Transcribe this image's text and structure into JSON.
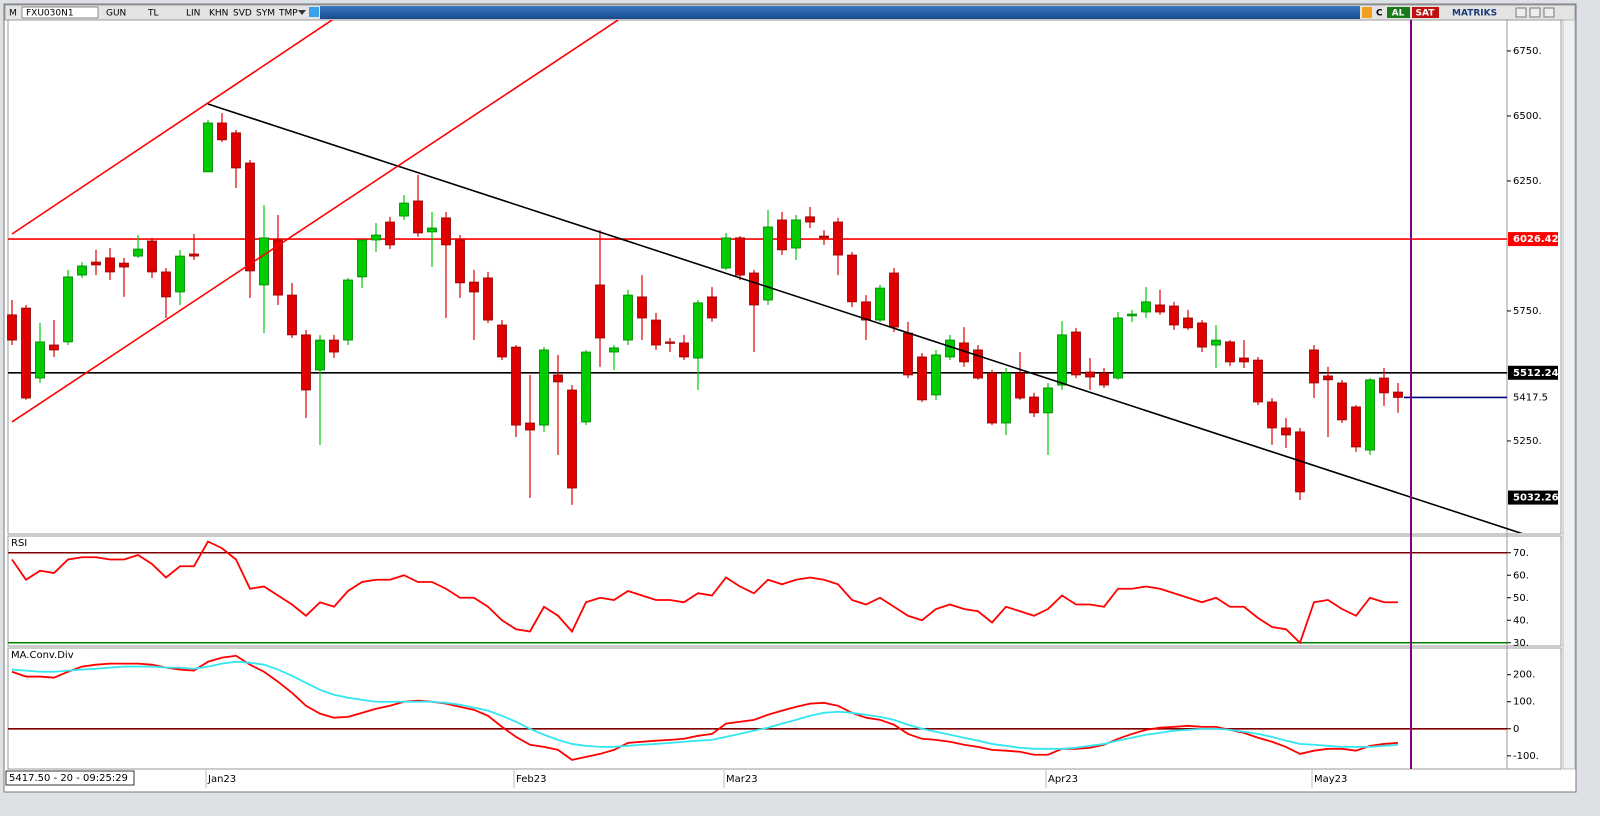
{
  "toolbar": {
    "menu": "M",
    "symbol": "FXU030N1",
    "buttons": [
      "GUN",
      "TL",
      "LIN",
      "KHN",
      "SVD",
      "SYM",
      "TMP"
    ],
    "refresh": "C",
    "buy": "AL",
    "sell": "SAT",
    "brand": "MATRIKS"
  },
  "status": "5417.50 - 20 - 09:25:29",
  "chart_data": [
    {
      "type": "candlestick",
      "categories": [
        null,
        null,
        null,
        null,
        null,
        null,
        null,
        null,
        null,
        null,
        null,
        null,
        null,
        null,
        "Jan23",
        null,
        null,
        null,
        null,
        null,
        null,
        null,
        null,
        null,
        null,
        null,
        null,
        null,
        null,
        null,
        null,
        null,
        null,
        null,
        null,
        null,
        "Feb23",
        null,
        null,
        null,
        null,
        null,
        null,
        null,
        null,
        null,
        null,
        null,
        null,
        null,
        null,
        "Mar23",
        null,
        null,
        null,
        null,
        null,
        null,
        null,
        null,
        null,
        null,
        null,
        null,
        null,
        null,
        null,
        null,
        null,
        null,
        null,
        null,
        null,
        null,
        "Apr23",
        null,
        null,
        null,
        null,
        null,
        null,
        null,
        null,
        null,
        null,
        null,
        null,
        null,
        null,
        null,
        null,
        null,
        null,
        "May23",
        null,
        null,
        null,
        null,
        null,
        null
      ],
      "open": [
        5735,
        5761,
        5492,
        5619,
        5631,
        5888,
        5938,
        5954,
        5934,
        5961,
        6019,
        5900,
        5823,
        5969,
        6285,
        6473,
        6435,
        6319,
        5850,
        6023,
        5811,
        5658,
        5523,
        5638,
        5638,
        5881,
        6023,
        6092,
        6115,
        6173,
        6054,
        6108,
        6023,
        5861,
        5877,
        5696,
        5611,
        5319,
        5311,
        5504,
        5446,
        5323,
        5850,
        5592,
        5638,
        5804,
        5715,
        5631,
        5627,
        5569,
        5804,
        5915,
        6031,
        5896,
        5792,
        6100,
        5992,
        6112,
        6038,
        6092,
        5965,
        5785,
        5715,
        5896,
        5665,
        5573,
        5427,
        5573,
        5627,
        5600,
        5511,
        5319,
        5511,
        5419,
        5358,
        5465,
        5669,
        5515,
        5511,
        5492,
        5731,
        5746,
        5773,
        5769,
        5723,
        5704,
        5619,
        5631,
        5569,
        5561,
        5400,
        5300,
        5285,
        5600,
        5500,
        5473,
        5381,
        5215,
        5492,
        5438
      ],
      "high": [
        5792,
        5773,
        5704,
        5715,
        5908,
        5938,
        5985,
        5992,
        5954,
        6042,
        6031,
        5915,
        5985,
        6046,
        6485,
        6511,
        6446,
        6331,
        6158,
        6119,
        5858,
        5677,
        5658,
        5658,
        5877,
        6023,
        6088,
        6112,
        6196,
        6273,
        6131,
        6131,
        6042,
        5908,
        5900,
        5715,
        5619,
        5504,
        5611,
        5581,
        5465,
        5600,
        6061,
        5619,
        5831,
        5888,
        5742,
        5646,
        5658,
        5792,
        5842,
        6050,
        6038,
        5908,
        6138,
        6131,
        6119,
        6150,
        6061,
        6108,
        5977,
        5811,
        5850,
        5915,
        5708,
        5588,
        5600,
        5658,
        5688,
        5619,
        5523,
        5531,
        5592,
        5435,
        5473,
        5711,
        5685,
        5569,
        5531,
        5746,
        5754,
        5842,
        5831,
        5785,
        5754,
        5715,
        5696,
        5638,
        5638,
        5573,
        5415,
        5338,
        5300,
        5619,
        5535,
        5485,
        5388,
        5492,
        5531,
        5473
      ],
      "low": [
        5619,
        5408,
        5473,
        5573,
        5619,
        5877,
        5888,
        5869,
        5804,
        5954,
        5877,
        5723,
        5773,
        5946,
        6285,
        6400,
        6223,
        5800,
        5665,
        5773,
        5646,
        5338,
        5235,
        5569,
        5619,
        5838,
        5977,
        5988,
        6100,
        6035,
        5919,
        5723,
        5800,
        5638,
        5704,
        5561,
        5265,
        5031,
        5285,
        5196,
        5004,
        5311,
        5535,
        5523,
        5619,
        5638,
        5600,
        5592,
        5561,
        5446,
        5708,
        5908,
        5869,
        5592,
        5773,
        5965,
        5946,
        6069,
        6004,
        5888,
        5765,
        5638,
        5708,
        5669,
        5492,
        5400,
        5408,
        5561,
        5535,
        5485,
        5311,
        5273,
        5408,
        5342,
        5196,
        5446,
        5492,
        5446,
        5454,
        5485,
        5708,
        5723,
        5735,
        5677,
        5677,
        5592,
        5531,
        5538,
        5531,
        5388,
        5235,
        5223,
        5023,
        5415,
        5265,
        5319,
        5208,
        5196,
        5385,
        5358
      ],
      "close": [
        5638,
        5415,
        5631,
        5600,
        5881,
        5923,
        5927,
        5900,
        5919,
        5988,
        5900,
        5804,
        5961,
        5961,
        6473,
        6408,
        6300,
        5904,
        6031,
        5811,
        5658,
        5446,
        5638,
        5592,
        5869,
        6023,
        6042,
        6004,
        6165,
        6050,
        6069,
        6004,
        5858,
        5823,
        5715,
        5573,
        5311,
        5292,
        5600,
        5477,
        5069,
        5592,
        5646,
        5608,
        5811,
        5723,
        5619,
        5627,
        5573,
        5781,
        5723,
        6031,
        5888,
        5773,
        6073,
        5985,
        6100,
        6092,
        6031,
        5965,
        5785,
        5715,
        5838,
        5688,
        5504,
        5408,
        5581,
        5638,
        5554,
        5492,
        5319,
        5511,
        5415,
        5358,
        5454,
        5658,
        5504,
        5496,
        5465,
        5723,
        5738,
        5785,
        5746,
        5696,
        5685,
        5611,
        5638,
        5554,
        5554,
        5400,
        5300,
        5273,
        5054,
        5473,
        5485,
        5331,
        5227,
        5485,
        5435,
        5417.5
      ],
      "up_color": "#00cc00",
      "down_color": "#e00000",
      "ylim": [
        4896,
        6869
      ],
      "yticks": [
        {
          "value": 5250,
          "label": "5250."
        },
        {
          "value": 5750,
          "label": "5750."
        },
        {
          "value": 6250,
          "label": "6250."
        },
        {
          "value": 6500,
          "label": "6500."
        },
        {
          "value": 6750,
          "label": "6750."
        }
      ],
      "levels": [
        {
          "value": 6026.42,
          "color": "#ff0000"
        },
        {
          "value": 5512.24,
          "color": "#000000"
        }
      ],
      "trendlines": [
        {
          "x": [
            14,
            100
          ],
          "y": [
            6546,
            5032.26
          ],
          "color": "#000000"
        },
        {
          "x": [
            0,
            14
          ],
          "y": [
            6046,
            6550
          ],
          "color": "#ff0000"
        },
        {
          "x": [
            0,
            28
          ],
          "y": [
            5323,
            6323
          ],
          "color": "#ff0000"
        }
      ],
      "last_color": "#000080"
    },
    {
      "type": "line",
      "title": "RSI",
      "series": [
        {
          "color": "#ff0000",
          "values": [
            67,
            58,
            62,
            61,
            67,
            68,
            68,
            67,
            67,
            69,
            65,
            59,
            64,
            64,
            75,
            72,
            67,
            54,
            55,
            51,
            47,
            42,
            48,
            46,
            53,
            57,
            58,
            58,
            60,
            57,
            57,
            54,
            50,
            50,
            46,
            40,
            36,
            35,
            46,
            42,
            35,
            48,
            50,
            49,
            53,
            51,
            49,
            49,
            48,
            52,
            51,
            59,
            55,
            52,
            58,
            56,
            58,
            59,
            58,
            56,
            49,
            47,
            50,
            46,
            42,
            40,
            45,
            47,
            45,
            44,
            39,
            46,
            44,
            42,
            45,
            51,
            47,
            47,
            46,
            54,
            54,
            55,
            54,
            52,
            50,
            48,
            50,
            46,
            46,
            41,
            37,
            36,
            30,
            48,
            49,
            45,
            42,
            50,
            48,
            48
          ]
        }
      ],
      "ylim": [
        29,
        77
      ],
      "yticks": [
        {
          "value": 30,
          "label": "30."
        },
        {
          "value": 40,
          "label": "40."
        },
        {
          "value": 50,
          "label": "50."
        },
        {
          "value": 60,
          "label": "60."
        },
        {
          "value": 70,
          "label": "70."
        }
      ],
      "levels": [
        {
          "value": 70,
          "color": "#800000"
        },
        {
          "value": 30,
          "color": "#008000"
        }
      ]
    },
    {
      "type": "line",
      "title": "MA.Conv.Div",
      "series": [
        {
          "color": "#ff0000",
          "values": [
            211,
            193,
            193,
            189,
            211,
            230,
            237,
            241,
            241,
            241,
            237,
            226,
            219,
            215,
            248,
            263,
            270,
            237,
            211,
            174,
            133,
            85,
            56,
            41,
            44,
            59,
            74,
            85,
            100,
            104,
            100,
            93,
            81,
            70,
            48,
            7,
            -30,
            -59,
            -67,
            -78,
            -115,
            -104,
            -93,
            -78,
            -52,
            -48,
            -44,
            -41,
            -37,
            -26,
            -19,
            19,
            26,
            33,
            52,
            67,
            81,
            93,
            96,
            85,
            59,
            41,
            33,
            15,
            -19,
            -37,
            -41,
            -48,
            -59,
            -67,
            -78,
            -81,
            -85,
            -96,
            -96,
            -74,
            -74,
            -70,
            -59,
            -37,
            -19,
            -4,
            4,
            7,
            11,
            7,
            7,
            -4,
            -15,
            -33,
            -48,
            -67,
            -93,
            -81,
            -74,
            -74,
            -81,
            -63,
            -56,
            -52
          ]
        },
        {
          "color": "#33e6f0",
          "values": [
            219,
            215,
            211,
            211,
            215,
            219,
            222,
            226,
            230,
            230,
            230,
            226,
            226,
            222,
            230,
            241,
            248,
            244,
            237,
            219,
            196,
            170,
            144,
            126,
            115,
            107,
            100,
            100,
            100,
            100,
            100,
            96,
            89,
            78,
            67,
            48,
            26,
            0,
            -22,
            -41,
            -56,
            -63,
            -67,
            -67,
            -63,
            -59,
            -56,
            -52,
            -48,
            -44,
            -41,
            -30,
            -19,
            -7,
            4,
            19,
            33,
            48,
            59,
            63,
            59,
            52,
            44,
            33,
            15,
            0,
            -11,
            -22,
            -33,
            -44,
            -56,
            -63,
            -70,
            -74,
            -74,
            -74,
            -70,
            -63,
            -56,
            -44,
            -33,
            -22,
            -15,
            -7,
            -4,
            0,
            0,
            -4,
            -11,
            -19,
            -30,
            -44,
            -56,
            -59,
            -63,
            -67,
            -67,
            -67,
            -63,
            -59
          ]
        }
      ],
      "ylim": [
        -145,
        295
      ],
      "yticks": [
        {
          "value": -100,
          "label": "-100."
        },
        0,
        {
          "value": 100,
          "label": "100."
        },
        {
          "value": 200,
          "label": "200."
        }
      ],
      "levels": [
        {
          "value": 0,
          "color": "#800000"
        }
      ]
    }
  ]
}
